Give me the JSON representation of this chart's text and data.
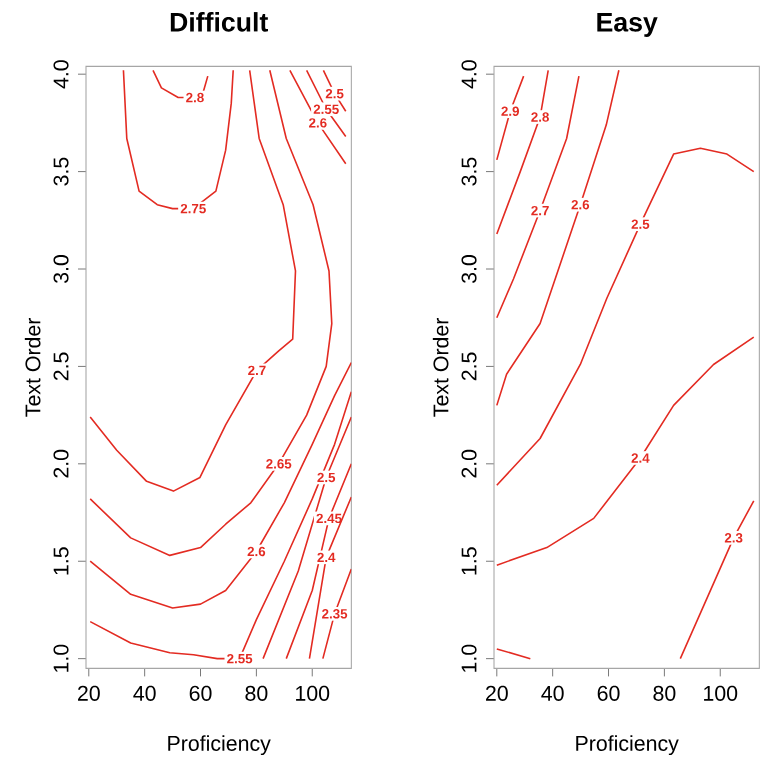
{
  "chart_data": [
    {
      "type": "line",
      "title": "Difficult",
      "xlabel": "Proficiency",
      "ylabel": "Text Order",
      "xlim": [
        19,
        114
      ],
      "ylim": [
        0.95,
        4.04
      ],
      "xticks": [
        20,
        40,
        60,
        80,
        100
      ],
      "yticks": [
        {
          "value": 1,
          "label": "1.0"
        },
        1.5,
        {
          "value": 2,
          "label": "2.0"
        },
        2.5,
        {
          "value": 3,
          "label": "3.0"
        },
        3.5,
        {
          "value": 4,
          "label": "4.0"
        }
      ],
      "series": [
        {
          "name": "2.8",
          "color": "#e32b22",
          "x": [
            43,
            46,
            52,
            58,
            61,
            62.6
          ],
          "values": [
            4.02,
            3.93,
            3.88,
            3.88,
            3.91,
            3.99
          ]
        },
        {
          "name": "2.75",
          "color": "#e32b22",
          "x": [
            32.4,
            33.6,
            38,
            44.5,
            50,
            57.4,
            65.5,
            69,
            71,
            71.7
          ],
          "values": [
            4.02,
            3.67,
            3.4,
            3.33,
            3.31,
            3.31,
            3.4,
            3.61,
            3.85,
            4.02
          ]
        },
        {
          "name": "2.7",
          "color": "#e32b22",
          "x": [
            77.6,
            81,
            89.6,
            94,
            93,
            88,
            80.2,
            69,
            59.8,
            50.3,
            40.7,
            30,
            20.5
          ],
          "values": [
            4.02,
            3.67,
            3.33,
            2.99,
            2.64,
            2.58,
            2.48,
            2.2,
            1.93,
            1.86,
            1.91,
            2.07,
            2.24
          ]
        },
        {
          "name": "2.65",
          "color": "#e32b22",
          "x": [
            84.8,
            90.7,
            100.3,
            106,
            107,
            105,
            98,
            88,
            78,
            69,
            60,
            49,
            35,
            20.5
          ],
          "values": [
            4.02,
            3.67,
            3.33,
            2.99,
            2.72,
            2.5,
            2.25,
            2.0,
            1.8,
            1.69,
            1.57,
            1.53,
            1.62,
            1.82
          ]
        },
        {
          "name": "2.6",
          "color": "#e32b22",
          "x": [
            20.5,
            35,
            50,
            60,
            69,
            80,
            90,
            100,
            108,
            114
          ],
          "values": [
            1.5,
            1.33,
            1.26,
            1.28,
            1.35,
            1.55,
            1.8,
            2.1,
            2.35,
            2.52
          ]
        },
        {
          "name": "2.55",
          "color": "#e32b22",
          "x": [
            20.5,
            35,
            49,
            57.5,
            66,
            74,
            80,
            90,
            100,
            108,
            114
          ],
          "values": [
            1.19,
            1.08,
            1.03,
            1.02,
            1.0,
            1.0,
            1.2,
            1.5,
            1.82,
            2.1,
            2.37
          ]
        },
        {
          "name": "2.5",
          "color": "#e32b22",
          "x": [
            82.4,
            95,
            105,
            114
          ],
          "values": [
            1.0,
            1.45,
            1.93,
            2.24
          ]
        },
        {
          "name": "2.45",
          "color": "#e32b22",
          "x": [
            90.7,
            100,
            106,
            114
          ],
          "values": [
            1.0,
            1.35,
            1.72,
            2.0
          ]
        },
        {
          "name": "2.4",
          "color": "#e32b22",
          "x": [
            99,
            105,
            114
          ],
          "values": [
            1.0,
            1.52,
            1.83
          ]
        },
        {
          "name": "2.35",
          "color": "#e32b22",
          "x": [
            103.8,
            108,
            114
          ],
          "values": [
            1.0,
            1.23,
            1.46
          ]
        },
        {
          "name": "2.6",
          "color": "#e32b22",
          "x": [
            92,
            102,
            112
          ],
          "values": [
            4.02,
            3.75,
            3.54
          ]
        },
        {
          "name": "2.55",
          "color": "#e32b22",
          "x": [
            98,
            105,
            112
          ],
          "values": [
            4.02,
            3.82,
            3.68
          ]
        },
        {
          "name": "2.5",
          "color": "#e32b22",
          "x": [
            104,
            108,
            112
          ],
          "values": [
            4.02,
            3.9,
            3.81
          ]
        }
      ]
    },
    {
      "type": "line",
      "title": "Easy",
      "xlabel": "Proficiency",
      "ylabel": "Text Order",
      "xlim": [
        19,
        114
      ],
      "ylim": [
        0.95,
        4.04
      ],
      "xticks": [
        20,
        40,
        60,
        80,
        100
      ],
      "yticks": [
        {
          "value": 1,
          "label": "1.0"
        },
        1.5,
        {
          "value": 2,
          "label": "2.0"
        },
        2.5,
        {
          "value": 3,
          "label": "3.0"
        },
        3.5,
        {
          "value": 4,
          "label": "4.0"
        }
      ],
      "series": [
        {
          "name": "2.9",
          "color": "#e32b22",
          "x": [
            20,
            24.8,
            29.6
          ],
          "values": [
            3.56,
            3.81,
            3.99
          ]
        },
        {
          "name": "2.8",
          "color": "#e32b22",
          "x": [
            20,
            28.4,
            35.5,
            38.4
          ],
          "values": [
            3.18,
            3.5,
            3.78,
            4.02
          ]
        },
        {
          "name": "2.7",
          "color": "#e32b22",
          "x": [
            20,
            26,
            35.5,
            45,
            49.4
          ],
          "values": [
            2.75,
            2.95,
            3.3,
            3.67,
            3.99
          ]
        },
        {
          "name": "2.6",
          "color": "#e32b22",
          "x": [
            20,
            23.5,
            35.5,
            49.9,
            59.2,
            63.7
          ],
          "values": [
            2.3,
            2.46,
            2.72,
            3.33,
            3.74,
            4.02
          ]
        },
        {
          "name": "2.5",
          "color": "#e32b22",
          "x": [
            20,
            35.5,
            49.9,
            59.4,
            71.4,
            83.3,
            92.9,
            102.4,
            112
          ],
          "values": [
            1.89,
            2.13,
            2.51,
            2.85,
            3.23,
            3.59,
            3.62,
            3.59,
            3.5
          ]
        },
        {
          "name": "2.4",
          "color": "#e32b22",
          "x": [
            20,
            37.9,
            54.7,
            71.4,
            83.3,
            97.6,
            112
          ],
          "values": [
            1.48,
            1.57,
            1.72,
            2.03,
            2.3,
            2.51,
            2.65
          ]
        },
        {
          "name": "2.3",
          "color": "#e32b22",
          "x": [
            85.7,
            104.8,
            112
          ],
          "values": [
            1.0,
            1.62,
            1.81
          ]
        },
        {
          "color": "#e32b22",
          "x": [
            20,
            32
          ],
          "values": [
            1.05,
            1.0
          ]
        }
      ]
    }
  ]
}
